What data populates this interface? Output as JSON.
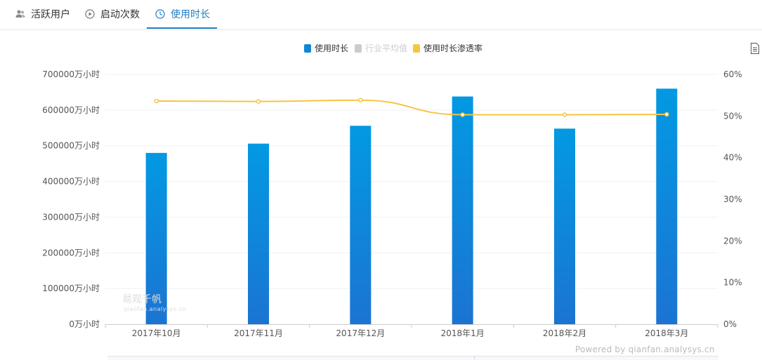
{
  "tabs": [
    {
      "label": "活跃用户",
      "icon": "users-icon",
      "active": false
    },
    {
      "label": "启动次数",
      "icon": "play-circle-icon",
      "active": false
    },
    {
      "label": "使用时长",
      "icon": "clock-icon",
      "active": true
    }
  ],
  "legend": [
    {
      "label": "使用时长",
      "color": "#0f86d8",
      "enabled": true
    },
    {
      "label": "行业平均值",
      "color": "#cccccc",
      "enabled": false
    },
    {
      "label": "使用时长渗透率",
      "color": "#f6c543",
      "enabled": true
    }
  ],
  "watermark": {
    "line1": "易观千帆",
    "line2": "qianfan.analysys.cn"
  },
  "credit": "Powered by qianfan.analysys.cn",
  "colors": {
    "accent": "#1f7dc1",
    "bar_top": "#0399e2",
    "bar_bottom": "#1b74d2",
    "line": "#f6c543"
  },
  "chart_data": {
    "type": "bar",
    "categories": [
      "2017年10月",
      "2017年11月",
      "2017年12月",
      "2018年1月",
      "2018年2月",
      "2018年3月"
    ],
    "series": [
      {
        "name": "使用时长",
        "type": "bar",
        "axis": "left",
        "values": [
          480000,
          506000,
          556000,
          638000,
          548000,
          660000
        ]
      },
      {
        "name": "使用时长渗透率",
        "type": "line",
        "axis": "right",
        "values": [
          53.6,
          53.5,
          53.8,
          50.3,
          50.3,
          50.4
        ]
      }
    ],
    "y_left": {
      "min": 0,
      "max": 700000,
      "ticks": [
        "0万小时",
        "100000万小时",
        "200000万小时",
        "300000万小时",
        "400000万小时",
        "500000万小时",
        "600000万小时",
        "700000万小时"
      ]
    },
    "y_right": {
      "min": 0,
      "max": 60,
      "ticks": [
        "0%",
        "10%",
        "20%",
        "30%",
        "40%",
        "50%",
        "60%"
      ]
    },
    "grid": true,
    "legend_position": "top-center"
  }
}
